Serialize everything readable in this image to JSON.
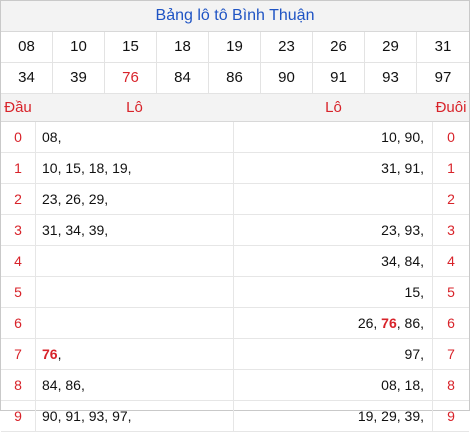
{
  "title": "Bảng lô tô Bình Thuận",
  "numbers": [
    [
      "08",
      "10",
      "15",
      "18",
      "19",
      "23",
      "26",
      "29",
      "31"
    ],
    [
      "34",
      "39",
      "76",
      "84",
      "86",
      "90",
      "91",
      "93",
      "97"
    ]
  ],
  "highlight": "76",
  "headers": {
    "dau": "Đầu",
    "lo_left": "Lô",
    "lo_right": "Lô",
    "duoi": "Đuôi"
  },
  "rows": [
    {
      "digit": "0",
      "left": [
        "08"
      ],
      "right": [
        "10",
        "90"
      ]
    },
    {
      "digit": "1",
      "left": [
        "10",
        "15",
        "18",
        "19"
      ],
      "right": [
        "31",
        "91"
      ]
    },
    {
      "digit": "2",
      "left": [
        "23",
        "26",
        "29"
      ],
      "right": []
    },
    {
      "digit": "3",
      "left": [
        "31",
        "34",
        "39"
      ],
      "right": [
        "23",
        "93"
      ]
    },
    {
      "digit": "4",
      "left": [],
      "right": [
        "34",
        "84"
      ]
    },
    {
      "digit": "5",
      "left": [],
      "right": [
        "15"
      ]
    },
    {
      "digit": "6",
      "left": [],
      "right": [
        "26",
        "76",
        "86"
      ]
    },
    {
      "digit": "7",
      "left": [
        "76"
      ],
      "right": [
        "97"
      ]
    },
    {
      "digit": "8",
      "left": [
        "84",
        "86"
      ],
      "right": [
        "08",
        "18"
      ]
    },
    {
      "digit": "9",
      "left": [
        "90",
        "91",
        "93",
        "97"
      ],
      "right": [
        "19",
        "29",
        "39"
      ]
    }
  ],
  "colors": {
    "accent_red": "#d8232a",
    "title_blue": "#1f54c4"
  }
}
